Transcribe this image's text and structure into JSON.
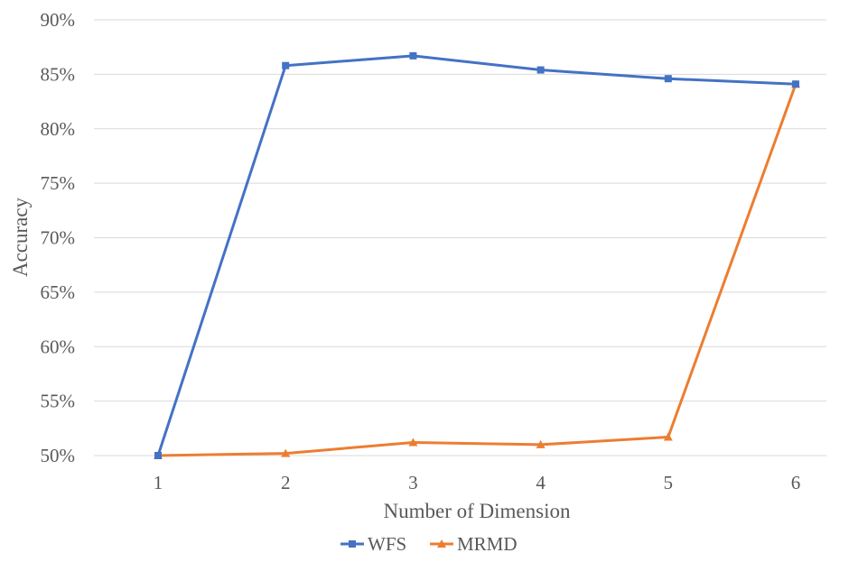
{
  "chart_data": {
    "type": "line",
    "xlabel": "Number of Dimension",
    "ylabel": "Accuracy",
    "categories": [
      "1",
      "2",
      "3",
      "4",
      "5",
      "6"
    ],
    "yticks": [
      "50%",
      "55%",
      "60%",
      "65%",
      "70%",
      "75%",
      "80%",
      "85%",
      "90%"
    ],
    "ylim": [
      50,
      90
    ],
    "grid": "horizontal",
    "legend": "bottom-center",
    "series": [
      {
        "name": "WFS",
        "color": "#4472c4",
        "marker": "square",
        "values": [
          50.0,
          85.8,
          86.7,
          85.4,
          84.6,
          84.1
        ]
      },
      {
        "name": "MRMD",
        "color": "#ed7d31",
        "marker": "triangle",
        "values": [
          50.0,
          50.2,
          51.2,
          51.0,
          51.7,
          84.1
        ]
      }
    ]
  }
}
